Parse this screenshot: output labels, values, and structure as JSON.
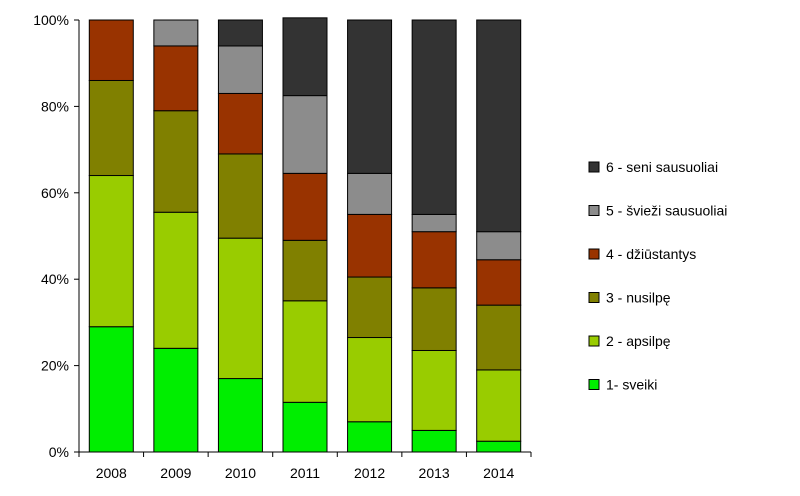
{
  "chart_data": {
    "type": "bar",
    "stacked": true,
    "normalized": true,
    "categories": [
      "2008",
      "2009",
      "2010",
      "2011",
      "2012",
      "2013",
      "2014"
    ],
    "ylim": [
      0,
      100
    ],
    "yticks": [
      "0%",
      "20%",
      "40%",
      "60%",
      "80%",
      "100%"
    ],
    "ytick_values": [
      0,
      20,
      40,
      60,
      80,
      100
    ],
    "grid": false,
    "legend_position": "right",
    "series": [
      {
        "name": "1- sveiki",
        "color": "#00ee00",
        "values": [
          29,
          24,
          17,
          11.5,
          7,
          5,
          2.5
        ]
      },
      {
        "name": "2 - apsilpę",
        "color": "#99cc00",
        "values": [
          35,
          31.5,
          32.5,
          23.5,
          19.5,
          18.5,
          16.5
        ]
      },
      {
        "name": "3 - nusilpę",
        "color": "#808000",
        "values": [
          22,
          23.5,
          19.5,
          14,
          14,
          14.5,
          15
        ]
      },
      {
        "name": "4 - džiūstantys",
        "color": "#993300",
        "values": [
          14,
          15,
          14,
          15.5,
          14.5,
          13,
          10.5
        ]
      },
      {
        "name": "5 - švieži sausuoliai",
        "color": "#8c8c8c",
        "values": [
          0,
          6,
          11,
          18,
          9.5,
          4,
          6.5
        ]
      },
      {
        "name": "6 - seni sausuoliai",
        "color": "#333333",
        "values": [
          0,
          0,
          6,
          18,
          35.5,
          45,
          49
        ]
      }
    ],
    "legend_order": [
      5,
      4,
      3,
      2,
      1,
      0
    ]
  }
}
